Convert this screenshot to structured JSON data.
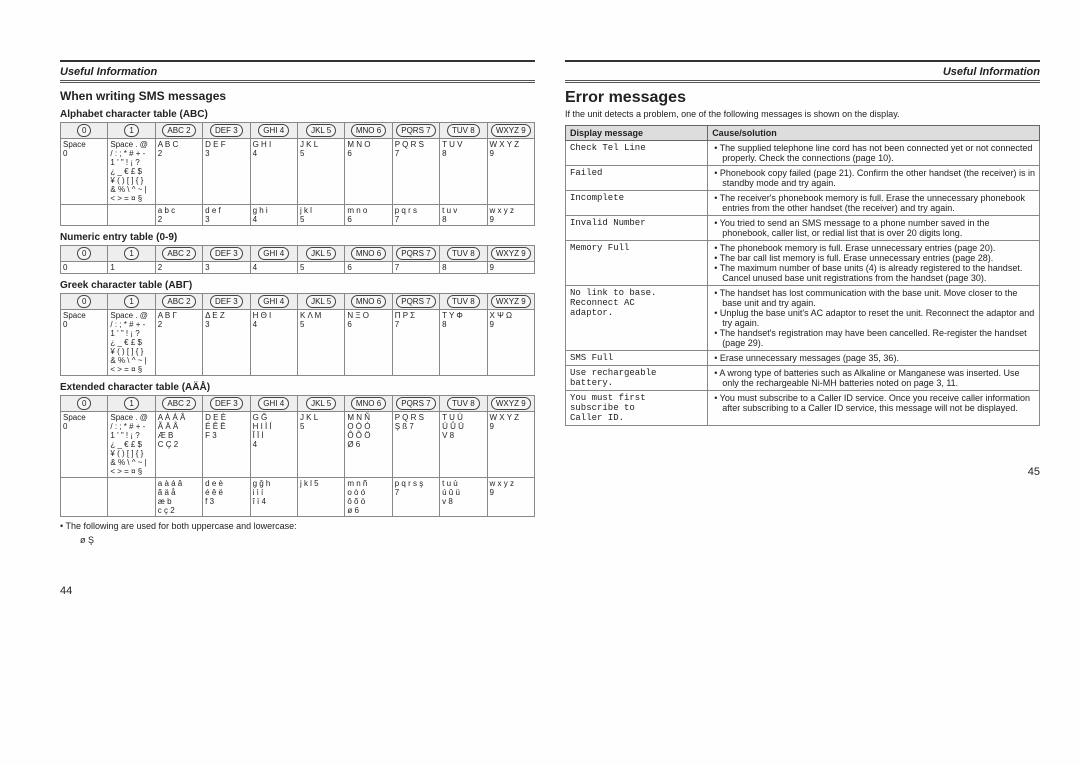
{
  "header": {
    "label": "Useful Information"
  },
  "left": {
    "title": "When writing SMS messages",
    "footnote": "• The following are used for both uppercase and lowercase:",
    "footnote_chars": "ø Ş",
    "pagenum": "44",
    "key_labels": [
      "0",
      "1",
      "ABC 2",
      "DEF 3",
      "GHI 4",
      "JKL 5",
      "MNO 6",
      "PQRS 7",
      "TUV 8",
      "WXYZ 9"
    ],
    "tables": [
      {
        "title": "Alphabet character table (ABC)",
        "rows": [
          [
            "Space\n0",
            "Space . @\n/ : ; * # + -\n1 ' \" ! ¡ ?\n¿ _ € £ $\n¥ ( ) [ ] { }\n& % \\ ^ ~ |\n< > = ¤ §",
            "A B C\n2",
            "D E F\n3",
            "G H I\n4",
            "J K L\n5",
            "M N O\n6",
            "P Q R S\n7",
            "T U V\n8",
            "W X Y Z\n9"
          ],
          [
            "",
            "",
            "a b c\n2",
            "d e f\n3",
            "g h i\n4",
            "j k l\n5",
            "m n o\n6",
            "p q r s\n7",
            "t u v\n8",
            "w x y z\n9"
          ]
        ]
      },
      {
        "title": "Numeric entry table (0-9)",
        "rows": [
          [
            "0",
            "1",
            "2",
            "3",
            "4",
            "5",
            "6",
            "7",
            "8",
            "9"
          ]
        ]
      },
      {
        "title": "Greek character table (ABΓ)",
        "rows": [
          [
            "Space\n0",
            "Space . @\n/ : ; * # + -\n1 ' \" ! ¡ ?\n¿ _ € £ $\n¥ ( ) [ ] { }\n& % \\ ^ ~ |\n< > = ¤ §",
            "A B Γ\n2",
            "Δ E Z\n3",
            "H Θ I\n4",
            "K Λ M\n5",
            "N Ξ O\n6",
            "Π P Σ\n7",
            "T Y Φ\n8",
            "X Ψ Ω\n9"
          ]
        ]
      },
      {
        "title": "Extended character table (AÄÅ)",
        "rows": [
          [
            "Space\n0",
            "Space . @\n/ : ; * # + -\n1 ' \" ! ¡ ?\n¿ _ € £ $\n¥ ( ) [ ] { }\n& % \\ ^ ~ |\n< > = ¤ §",
            "A À Á Â\nÃ Ä Å\nÆ B\nC Ç 2",
            "D E È\nÉ Ê Ë\nF 3",
            "G Ğ\nH I Ì Í\nÎ Ï İ\n4",
            "J K L\n5",
            "M N Ñ\nO Ò Ó\nÔ Õ Ö\nØ 6",
            "P Q R S\nŞ ß 7",
            "T U Ù\nÚ Û Ü\nV 8",
            "W X Y Z\n9"
          ],
          [
            "",
            "",
            "a à á â\nã ä å\næ b\nc ç 2",
            "d e è\né ê ë\nf 3",
            "g ğ h\ni ì í\nî ï 4",
            "j k l 5",
            "m n ñ\no ò ó\nô õ ö\nø 6",
            "p q r s ş\n7",
            "t u ù\nú û ü\nv 8",
            "w x y z\n9"
          ]
        ]
      }
    ]
  },
  "right": {
    "title": "Error messages",
    "intro": "If the unit detects a problem, one of the following messages is shown on the display.",
    "pagenum": "45",
    "headers": [
      "Display message",
      "Cause/solution"
    ],
    "rows": [
      {
        "msg": "Check Tel Line",
        "sol": [
          "The supplied telephone line cord has not been connected yet or not connected properly. Check the connections (page 10)."
        ]
      },
      {
        "msg": "Failed",
        "sol": [
          "Phonebook copy failed (page 21). Confirm the other handset (the receiver) is in standby mode and try again."
        ]
      },
      {
        "msg": "Incomplete",
        "sol": [
          "The receiver's phonebook memory is full. Erase the unnecessary phonebook entries from the other handset (the receiver) and try again."
        ]
      },
      {
        "msg": "Invalid Number",
        "sol": [
          "You tried to send an SMS message to a phone number saved in the phonebook, caller list, or redial list that is over 20 digits long."
        ]
      },
      {
        "msg": "Memory Full",
        "sol": [
          "The phonebook memory is full. Erase unnecessary entries (page 20).",
          "The bar call list memory is full. Erase unnecessary entries (page 28).",
          "The maximum number of base units (4) is already registered to the handset. Cancel unused base unit registrations from the handset (page 30)."
        ]
      },
      {
        "msg": "No link to base.\nReconnect AC\nadaptor.",
        "sol": [
          "The handset has lost communication with the base unit. Move closer to the base unit and try again.",
          "Unplug the base unit's AC adaptor to reset the unit. Reconnect the adaptor and try again.",
          "The handset's registration may have been cancelled. Re-register the handset (page 29)."
        ]
      },
      {
        "msg": "SMS Full",
        "sol": [
          "Erase unnecessary messages (page 35, 36)."
        ]
      },
      {
        "msg": "Use rechargeable\nbattery.",
        "sol": [
          "A wrong type of batteries such as Alkaline or Manganese was inserted. Use only the rechargeable Ni-MH batteries noted on page 3, 11."
        ]
      },
      {
        "msg": "You must first\nsubscribe to\nCaller ID.",
        "sol": [
          "You must subscribe to a Caller ID service. Once you receive caller information after subscribing to a Caller ID service, this message will not be displayed."
        ]
      }
    ]
  }
}
